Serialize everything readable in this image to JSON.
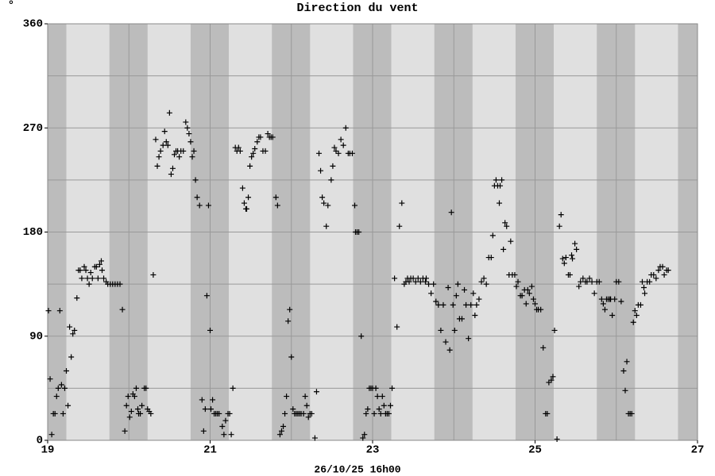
{
  "chart_data": {
    "type": "scatter",
    "title": "Direction du vent",
    "unit_label": "°",
    "xlabel": "26/10/25 16h00",
    "color": "#000000",
    "marker": "+",
    "background": "#e0e0e0",
    "shade_color": "#bcbcbc",
    "xlim": [
      19,
      27
    ],
    "ylim": [
      0,
      360
    ],
    "xticks": [
      19,
      21,
      23,
      25,
      27
    ],
    "xgrid": [
      19,
      20,
      21,
      22,
      23,
      24,
      25,
      26,
      27
    ],
    "yticks": [
      0,
      90,
      180,
      270,
      360
    ],
    "ygrid": [
      0,
      45,
      90,
      135,
      180,
      225,
      270,
      315,
      360
    ],
    "shaded_ranges": [
      [
        19,
        19.23
      ],
      [
        19.76,
        20.23
      ],
      [
        20.76,
        21.23
      ],
      [
        21.76,
        22.23
      ],
      [
        22.76,
        23.23
      ],
      [
        23.76,
        24.23
      ],
      [
        24.76,
        25.23
      ],
      [
        25.76,
        26.23
      ],
      [
        26.76,
        27
      ]
    ],
    "x": [
      19.01,
      19.03,
      19.05,
      19.07,
      19.09,
      19.11,
      19.13,
      19.15,
      19.17,
      19.19,
      19.21,
      19.23,
      19.25,
      19.27,
      19.29,
      19.31,
      19.33,
      19.36,
      19.38,
      19.4,
      19.42,
      19.45,
      19.47,
      19.49,
      19.51,
      19.53,
      19.55,
      19.58,
      19.6,
      19.62,
      19.64,
      19.66,
      19.67,
      19.69,
      19.72,
      19.74,
      19.77,
      19.8,
      19.83,
      19.86,
      19.89,
      19.92,
      19.95,
      19.97,
      19.99,
      20.01,
      20.03,
      20.05,
      20.07,
      20.09,
      20.11,
      20.12,
      20.14,
      20.16,
      20.19,
      20.21,
      20.23,
      20.25,
      20.27,
      20.3,
      20.33,
      20.35,
      20.37,
      20.39,
      20.42,
      20.44,
      20.46,
      20.48,
      20.5,
      20.52,
      20.54,
      20.56,
      20.58,
      20.6,
      20.62,
      20.64,
      20.67,
      20.7,
      20.72,
      20.74,
      20.76,
      20.78,
      20.8,
      20.82,
      20.84,
      20.87,
      20.9,
      20.92,
      20.94,
      20.96,
      20.98,
      21.0,
      21.01,
      21.03,
      21.05,
      21.07,
      21.09,
      21.11,
      21.15,
      21.17,
      21.19,
      21.22,
      21.24,
      21.26,
      21.28,
      21.31,
      21.33,
      21.35,
      21.37,
      21.4,
      21.42,
      21.44,
      21.45,
      21.47,
      21.49,
      21.51,
      21.53,
      21.55,
      21.58,
      21.6,
      21.62,
      21.65,
      21.68,
      21.71,
      21.73,
      21.75,
      21.77,
      21.81,
      21.83,
      21.86,
      21.88,
      21.9,
      21.92,
      21.94,
      21.96,
      21.98,
      22.0,
      22.02,
      22.04,
      22.06,
      22.08,
      22.1,
      22.12,
      22.15,
      22.17,
      22.19,
      22.21,
      22.23,
      22.25,
      22.29,
      22.31,
      22.34,
      22.36,
      22.38,
      22.4,
      22.43,
      22.45,
      22.49,
      22.51,
      22.53,
      22.55,
      22.58,
      22.61,
      22.64,
      22.67,
      22.7,
      22.72,
      22.75,
      22.78,
      22.79,
      22.81,
      22.83,
      22.86,
      22.88,
      22.9,
      22.92,
      22.94,
      22.96,
      22.98,
      23.0,
      23.02,
      23.04,
      23.06,
      23.08,
      23.1,
      23.12,
      23.14,
      23.16,
      23.18,
      23.2,
      23.22,
      23.24,
      23.27,
      23.3,
      23.33,
      23.36,
      23.39,
      23.41,
      23.43,
      23.45,
      23.47,
      23.5,
      23.53,
      23.56,
      23.59,
      23.62,
      23.65,
      23.66,
      23.69,
      23.72,
      23.75,
      23.78,
      23.81,
      23.84,
      23.87,
      23.9,
      23.93,
      23.95,
      23.97,
      23.99,
      24.01,
      24.03,
      24.05,
      24.07,
      24.1,
      24.13,
      24.15,
      24.18,
      24.21,
      24.24,
      24.26,
      24.28,
      24.31,
      24.34,
      24.37,
      24.4,
      24.43,
      24.46,
      24.48,
      24.5,
      24.52,
      24.54,
      24.56,
      24.57,
      24.59,
      24.61,
      24.63,
      24.65,
      24.68,
      24.7,
      24.72,
      24.75,
      24.77,
      24.79,
      24.82,
      24.84,
      24.87,
      24.89,
      24.91,
      24.93,
      24.96,
      24.98,
      25.0,
      25.02,
      25.04,
      25.07,
      25.1,
      25.13,
      25.15,
      25.17,
      25.2,
      25.22,
      25.24,
      25.27,
      25.3,
      25.32,
      25.34,
      25.36,
      25.38,
      25.41,
      25.43,
      25.45,
      25.46,
      25.49,
      25.51,
      25.54,
      25.56,
      25.59,
      25.62,
      25.64,
      25.67,
      25.7,
      25.73,
      25.76,
      25.79,
      25.82,
      25.84,
      25.86,
      25.88,
      25.9,
      25.92,
      25.93,
      25.95,
      25.98,
      26.0,
      26.03,
      26.06,
      26.09,
      26.11,
      26.13,
      26.15,
      26.17,
      26.19,
      26.21,
      26.23,
      26.25,
      26.27,
      26.3,
      26.32,
      26.34,
      26.35,
      26.38,
      26.41,
      26.43,
      26.46,
      26.49,
      26.52,
      26.54,
      26.57,
      26.59,
      26.62,
      26.64
    ],
    "values": [
      112,
      53,
      5,
      23,
      23,
      38,
      45,
      112,
      48,
      23,
      45,
      60,
      30,
      98,
      72,
      92,
      95,
      123,
      147,
      147,
      140,
      150,
      147,
      140,
      135,
      145,
      140,
      150,
      150,
      140,
      152,
      155,
      147,
      140,
      137,
      135,
      135,
      135,
      135,
      135,
      135,
      113,
      8,
      30,
      38,
      20,
      25,
      40,
      38,
      45,
      27,
      23,
      23,
      30,
      45,
      45,
      27,
      25,
      23,
      143,
      260,
      237,
      245,
      250,
      255,
      267,
      258,
      255,
      283,
      230,
      235,
      247,
      250,
      250,
      245,
      250,
      250,
      275,
      270,
      265,
      258,
      245,
      250,
      225,
      210,
      203,
      35,
      8,
      27,
      125,
      203,
      95,
      27,
      35,
      23,
      23,
      23,
      23,
      12,
      5,
      17,
      23,
      23,
      5,
      45,
      253,
      250,
      253,
      250,
      218,
      205,
      200,
      200,
      210,
      237,
      245,
      248,
      252,
      258,
      262,
      262,
      250,
      250,
      265,
      262,
      262,
      262,
      210,
      203,
      5,
      8,
      12,
      23,
      38,
      103,
      113,
      72,
      27,
      23,
      23,
      23,
      23,
      23,
      23,
      38,
      30,
      20,
      23,
      23,
      2,
      42,
      248,
      233,
      210,
      205,
      185,
      203,
      225,
      237,
      253,
      250,
      248,
      260,
      255,
      270,
      248,
      248,
      248,
      203,
      180,
      180,
      180,
      90,
      2,
      5,
      23,
      27,
      45,
      45,
      45,
      23,
      45,
      38,
      27,
      23,
      38,
      30,
      23,
      23,
      23,
      30,
      45,
      140,
      98,
      185,
      205,
      135,
      137,
      140,
      137,
      140,
      140,
      137,
      140,
      137,
      140,
      137,
      140,
      135,
      127,
      135,
      120,
      117,
      95,
      117,
      85,
      132,
      78,
      197,
      117,
      95,
      125,
      135,
      105,
      105,
      130,
      117,
      88,
      117,
      127,
      108,
      117,
      122,
      137,
      140,
      135,
      158,
      158,
      177,
      220,
      225,
      220,
      205,
      220,
      225,
      165,
      188,
      185,
      143,
      172,
      143,
      143,
      133,
      137,
      125,
      125,
      130,
      118,
      130,
      127,
      133,
      122,
      118,
      113,
      113,
      113,
      80,
      23,
      23,
      50,
      52,
      55,
      95,
      1,
      185,
      195,
      157,
      153,
      158,
      143,
      143,
      160,
      157,
      170,
      165,
      133,
      137,
      140,
      137,
      137,
      140,
      137,
      127,
      137,
      137,
      122,
      118,
      113,
      122,
      122,
      122,
      122,
      108,
      122,
      137,
      137,
      120,
      60,
      43,
      68,
      23,
      23,
      23,
      102,
      112,
      108,
      117,
      117,
      137,
      132,
      127,
      137,
      137,
      143,
      143,
      140,
      147,
      150,
      150,
      143,
      147,
      147
    ]
  }
}
